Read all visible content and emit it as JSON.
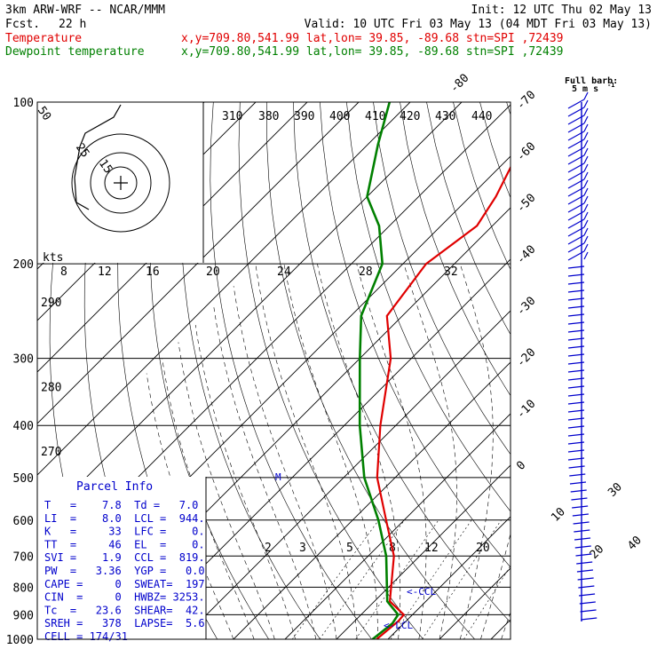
{
  "header": {
    "model": "3km ARW-WRF -- NCAR/MMM",
    "init": "Init: 12 UTC Thu 02 May 13",
    "fcst_label": "Fcst.",
    "fcst_value": "22 h",
    "valid": "Valid: 10 UTC Fri 03 May 13 (04 MDT Fri 03 May 13)",
    "temp_label": "Temperature",
    "dew_label": "Dewpoint temperature",
    "temp_info": "x,y=709.80,541.99   lat,lon= 39.85, -89.68  stn=SPI ,72439",
    "dew_info": "x,y=709.80,541.99   lat,lon= 39.85, -89.68  stn=SPI ,72439",
    "barb_title": "Full barb:",
    "barb_units": "5 m s",
    "barb_exp": "-1"
  },
  "colors": {
    "temperature": "#e00000",
    "dewpoint": "#008000",
    "parcel": "#0000cc",
    "grid": "#000000"
  },
  "chart_data": {
    "type": "line",
    "title": "Skew-T log-p sounding",
    "y_scale": "log pressure",
    "ylim": [
      1000,
      100
    ],
    "pressure_levels": [
      100,
      200,
      300,
      400,
      500,
      600,
      700,
      800,
      900,
      1000
    ],
    "isotherm_labels": [
      -80,
      -70,
      -60,
      -50,
      -40,
      -30,
      -20,
      -10,
      0,
      10,
      20,
      30,
      40
    ],
    "theta_labels": [
      {
        "text": "270",
        "p": 455
      },
      {
        "text": "280",
        "p": 345
      },
      {
        "text": "290",
        "p": 240
      }
    ],
    "theta_e_labels": [
      "310",
      "380",
      "390",
      "400",
      "410",
      "420",
      "430",
      "440"
    ],
    "mixing_ratio_labels": [
      "2",
      "3",
      "5",
      "8",
      "12",
      "20"
    ],
    "hodograph_ring_labels": [
      "50",
      "25",
      "15"
    ],
    "hodograph_speed_labels": [
      "8",
      "12",
      "16",
      "20",
      "24",
      "28",
      "32"
    ],
    "hodograph_units": "kts",
    "series": [
      {
        "name": "Temperature",
        "x": [
          7.8,
          8.5,
          8.3,
          3.0,
          -5.0,
          -13.5,
          -23.5,
          -33.0,
          -44.0,
          -53.0,
          -55.5,
          -53.0,
          -55.0,
          -60.0,
          -65.5
        ],
        "y": [
          1000,
          925,
          900,
          850,
          700,
          600,
          500,
          400,
          300,
          250,
          200,
          170,
          150,
          120,
          100
        ]
      },
      {
        "name": "Dewpoint temperature",
        "x": [
          7.0,
          7.8,
          7.2,
          2.5,
          -6.5,
          -15.0,
          -26.0,
          -37.0,
          -50.0,
          -58.0,
          -64.0,
          -72.0,
          -80.0,
          -88.0,
          -94.0
        ],
        "y": [
          1000,
          935,
          900,
          850,
          700,
          600,
          500,
          400,
          300,
          250,
          200,
          170,
          150,
          120,
          100
        ]
      }
    ],
    "annotations": [
      "<-CCL",
      "<-LCL"
    ],
    "legend": "top-left"
  },
  "parcel_info": {
    "title": "Parcel Info",
    "rows": [
      "T   =    7.8  Td =   7.0",
      "LI  =    8.0  LCL =  944.",
      "K   =     33  LFC =    0.",
      "TT  =     46  EL  =    0.",
      "SVI =    1.9  CCL =  819.",
      "PW  =   3.36  YGP =   0.0",
      "CAPE =     0  SWEAT=  197",
      "CIN  =     0  HWBZ= 3253.",
      "Tc  =   23.6  SHEAR=  42.",
      "SREH =   378  LAPSE=  5.6",
      "CELL = 174/31"
    ]
  }
}
